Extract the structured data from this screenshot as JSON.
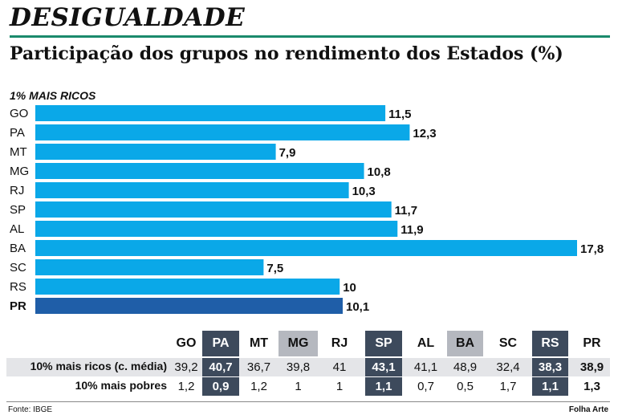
{
  "header": {
    "kicker": "DESIGUALDADE",
    "subtitle": "Participação dos grupos no rendimento dos Estados (%)",
    "group_label": "1% MAIS RICOS"
  },
  "colors": {
    "bar": "#0aa8e8",
    "highlight_bar": "#1f5ea8",
    "accent_rule": "#1a8a6c",
    "dark_header": "#3d4a5c",
    "grey_header": "#b5b8bf"
  },
  "chart_data": {
    "type": "bar",
    "orientation": "horizontal",
    "categories": [
      "GO",
      "PA",
      "MT",
      "MG",
      "RJ",
      "SP",
      "AL",
      "BA",
      "SC",
      "RS",
      "PR"
    ],
    "values": [
      11.5,
      12.3,
      7.9,
      10.8,
      10.3,
      11.7,
      11.9,
      17.8,
      7.5,
      10,
      10.1
    ],
    "value_labels": [
      "11,5",
      "12,3",
      "7,9",
      "10,8",
      "10,3",
      "11,7",
      "11,9",
      "17,8",
      "7,5",
      "10",
      "10,1"
    ],
    "highlight": "PR",
    "xlim": [
      0,
      17.8
    ],
    "grid": false
  },
  "table": {
    "columns": [
      "GO",
      "PA",
      "MT",
      "MG",
      "RJ",
      "SP",
      "AL",
      "BA",
      "SC",
      "RS",
      "PR"
    ],
    "column_style": [
      "plain",
      "dark",
      "plain",
      "grey",
      "plain",
      "dark",
      "plain",
      "grey",
      "plain",
      "dark",
      "plain"
    ],
    "rows": [
      {
        "label": "10% mais ricos (c. média)",
        "values": [
          "39,2",
          "40,7",
          "36,7",
          "39,8",
          "41",
          "43,1",
          "41,1",
          "48,9",
          "32,4",
          "38,3",
          "38,9"
        ]
      },
      {
        "label": "10% mais pobres",
        "values": [
          "1,2",
          "0,9",
          "1,2",
          "1",
          "1",
          "1,1",
          "0,7",
          "0,5",
          "1,7",
          "1,1",
          "1,3"
        ]
      }
    ]
  },
  "footer": {
    "source": "Fonte: IBGE",
    "credit": "Folha Arte"
  }
}
